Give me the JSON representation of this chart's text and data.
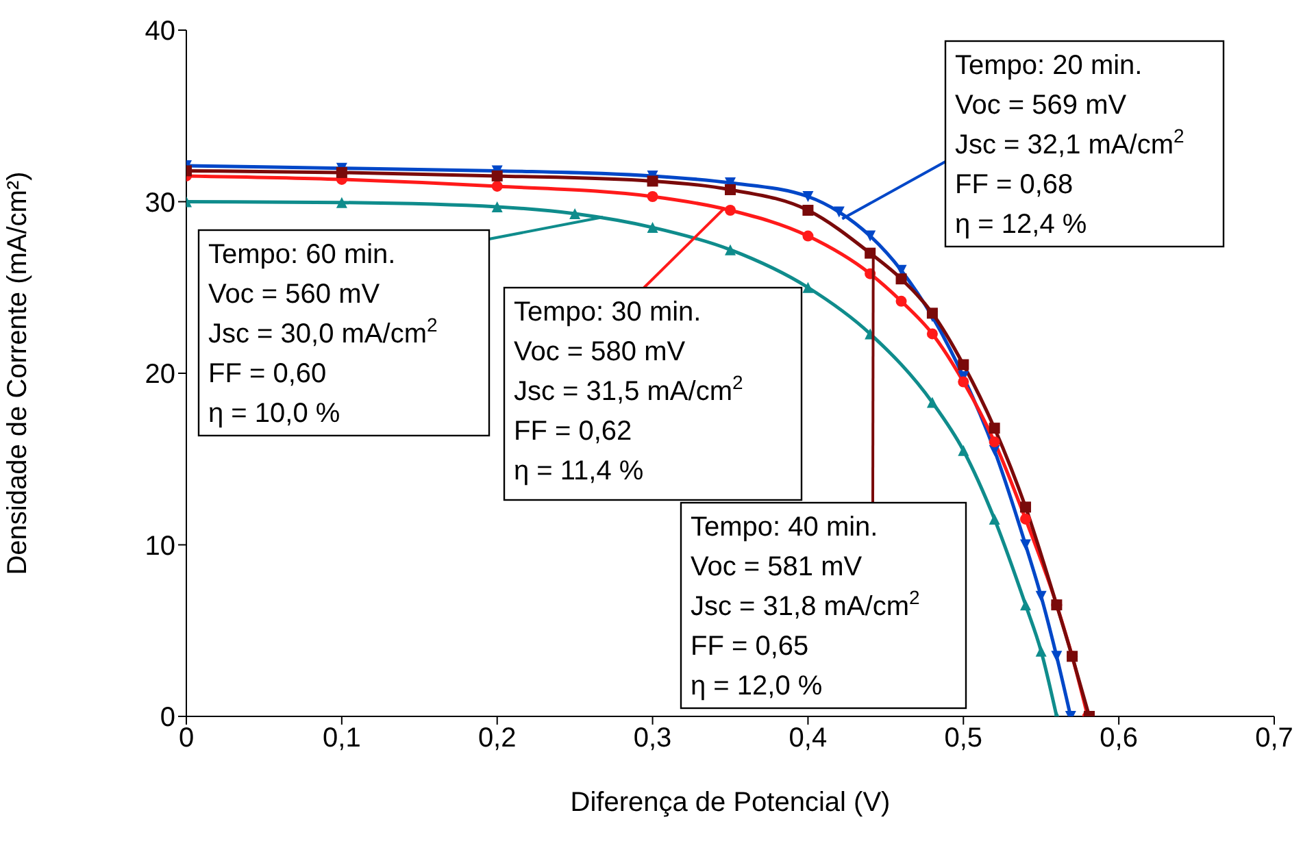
{
  "chart_data": {
    "type": "line",
    "xlabel": "Diferença de Potencial (V)",
    "ylabel": "Densidade de Corrente (mA/cm²)",
    "xlim": [
      0,
      0.7
    ],
    "ylim": [
      0,
      40
    ],
    "xticks": [
      {
        "value": 0,
        "label": "0"
      },
      {
        "value": 0.1,
        "label": "0,1"
      },
      {
        "value": 0.2,
        "label": "0,2"
      },
      {
        "value": 0.3,
        "label": "0,3"
      },
      {
        "value": 0.4,
        "label": "0,4"
      },
      {
        "value": 0.5,
        "label": "0,5"
      },
      {
        "value": 0.6,
        "label": "0,6"
      },
      {
        "value": 0.7,
        "label": "0,7"
      }
    ],
    "yticks": [
      0,
      10,
      20,
      30,
      40
    ],
    "grid": false,
    "series": [
      {
        "color": "#0047c8",
        "marker": "triangle-down",
        "x": [
          0,
          0.1,
          0.2,
          0.3,
          0.35,
          0.4,
          0.42,
          0.44,
          0.46,
          0.48,
          0.5,
          0.52,
          0.54,
          0.55,
          0.56,
          0.569
        ],
        "values": [
          32.1,
          31.95,
          31.8,
          31.5,
          31.1,
          30.3,
          29.4,
          28,
          26,
          23.3,
          19.8,
          15.5,
          10,
          7,
          3.5,
          0
        ]
      },
      {
        "color": "#ff1a1a",
        "marker": "circle",
        "x": [
          0,
          0.1,
          0.2,
          0.3,
          0.35,
          0.4,
          0.44,
          0.46,
          0.48,
          0.5,
          0.52,
          0.54,
          0.56,
          0.57,
          0.58
        ],
        "values": [
          31.5,
          31.3,
          30.9,
          30.3,
          29.5,
          28,
          25.8,
          24.2,
          22.3,
          19.5,
          16,
          11.5,
          6.5,
          3.5,
          0
        ]
      },
      {
        "color": "#7a0a0a",
        "marker": "square",
        "x": [
          0,
          0.1,
          0.2,
          0.3,
          0.35,
          0.4,
          0.44,
          0.46,
          0.48,
          0.5,
          0.52,
          0.54,
          0.56,
          0.57,
          0.581
        ],
        "values": [
          31.8,
          31.7,
          31.5,
          31.2,
          30.7,
          29.5,
          27,
          25.5,
          23.5,
          20.5,
          16.8,
          12.2,
          6.5,
          3.5,
          0
        ]
      },
      {
        "color": "#0f8c8c",
        "marker": "triangle",
        "x": [
          0,
          0.1,
          0.2,
          0.25,
          0.3,
          0.35,
          0.4,
          0.44,
          0.48,
          0.5,
          0.52,
          0.54,
          0.55,
          0.56
        ],
        "values": [
          30,
          29.95,
          29.7,
          29.3,
          28.5,
          27.2,
          25,
          22.3,
          18.3,
          15.5,
          11.5,
          6.5,
          3.8,
          0
        ]
      }
    ],
    "annotations": [
      "Tempo: 20 min.",
      "Voc = 569 mV",
      {
        "text": "Jsc = 32,1 mA/cm$^{2}$",
        "x": 0.422,
        "y": 29.0
      },
      "FF = 0,68",
      "η = 12,4 %",
      {
        "text": "Tempo: 60 min.",
        "x": 0.268,
        "y": 29.1
      },
      "Voc = 560 mV",
      "Jsc = 30,0 mA/cm$^{2}$",
      "FF = 0,60",
      "η = 10,0 %",
      {
        "text": "Tempo: 30 min.",
        "x": 0.346,
        "y": 29.6
      },
      "Voc = 580 mV",
      "Jsc = 31,5 mA/cm$^{2}$",
      "FF = 0,62",
      "η = 11,4 %",
      {
        "text": "Tempo: 40 min.",
        "x": 0.442,
        "y": 27.2
      },
      "Voc = 581 mV",
      "Jsc = 31,8 mA/cm$^{2}$",
      "FF = 0,65",
      "η = 12,0 %"
    ]
  }
}
